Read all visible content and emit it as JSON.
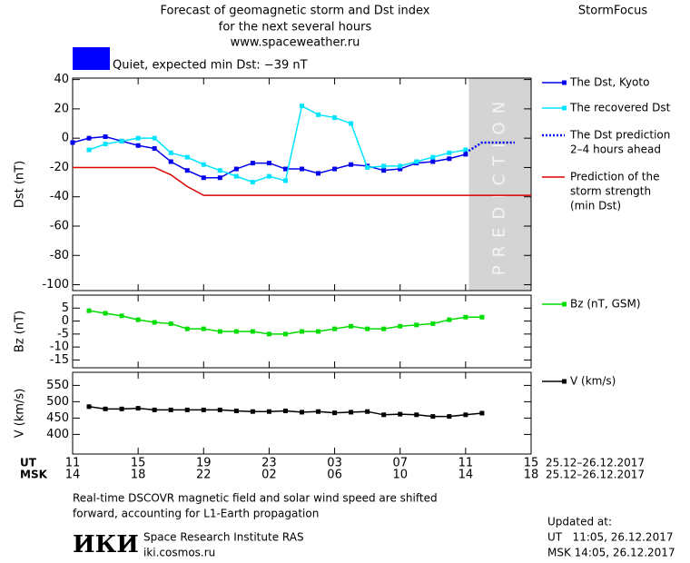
{
  "header": {
    "title_lines": [
      "Forecast of geomagnetic storm and Dst index",
      "for the next several hours",
      "www.spaceweather.ru"
    ],
    "brand": "StormFocus"
  },
  "status": {
    "text": "Quiet, expected min Dst: −39 nT",
    "color": "#0000ff"
  },
  "chart_data": [
    {
      "type": "line",
      "ylabel": "Dst (nT)",
      "xlim": [
        0,
        28
      ],
      "ylim": [
        -104,
        41
      ],
      "yticks": [
        40,
        20,
        0,
        -20,
        -40,
        -60,
        -80,
        -100
      ],
      "shade": {
        "x": [
          24.2,
          28
        ],
        "label": "PREDICTION",
        "color": "#d4d4d4"
      },
      "series": [
        {
          "name": [
            "The Dst, Kyoto"
          ],
          "color": "#0000ee",
          "marker": "square",
          "x": [
            0,
            1,
            2,
            3,
            4,
            5,
            6,
            7,
            8,
            9,
            10,
            11,
            12,
            13,
            14,
            15,
            16,
            17,
            18,
            19,
            20,
            21,
            22,
            23,
            24
          ],
          "values": [
            -3,
            0,
            1,
            -2,
            -5,
            -7,
            -16,
            -22,
            -27,
            -27,
            -21,
            -17,
            -17,
            -21,
            -21,
            -24,
            -21,
            -18,
            -19,
            -22,
            -21,
            -17,
            -16,
            -14,
            -11
          ]
        },
        {
          "name": [
            "The recovered Dst"
          ],
          "color": "#00e5ff",
          "marker": "square",
          "x": [
            0,
            1,
            2,
            3,
            4,
            5,
            6,
            7,
            8,
            9,
            10,
            11,
            12,
            13,
            14,
            15,
            16,
            17,
            18,
            19,
            20,
            21,
            22,
            23,
            24
          ],
          "values": [
            null,
            -8,
            -4,
            -2,
            0,
            0,
            -10,
            -13,
            -18,
            -22,
            -26,
            -30,
            -26,
            -29,
            22,
            16,
            14,
            10,
            -20,
            -19,
            -19,
            -16,
            -13,
            -10,
            -8
          ]
        },
        {
          "name": [
            "The Dst prediction",
            "2–4 hours ahead"
          ],
          "color": "#0000ee",
          "dash": "dotted",
          "x": [
            24,
            25,
            27
          ],
          "values": [
            -10,
            -3,
            -3
          ]
        },
        {
          "name": [
            "Prediction of the",
            "storm strength",
            "(min Dst)"
          ],
          "color": "#dd0000",
          "x": [
            0,
            5,
            6,
            7,
            8,
            28
          ],
          "values": [
            -20,
            -20,
            -25,
            -33,
            -39,
            -39
          ]
        }
      ]
    },
    {
      "type": "line",
      "ylabel": "Bz (nT)",
      "xlim": [
        0,
        28
      ],
      "ylim": [
        -18,
        10
      ],
      "yticks": [
        5,
        0,
        -5,
        -10,
        -15
      ],
      "series": [
        {
          "name": [
            "Bz (nT, GSM)"
          ],
          "color": "#00dd00",
          "marker": "square",
          "x": [
            1,
            2,
            3,
            4,
            5,
            6,
            7,
            8,
            9,
            10,
            11,
            12,
            13,
            14,
            15,
            16,
            17,
            18,
            19,
            20,
            21,
            22,
            23,
            24,
            25
          ],
          "values": [
            4,
            3,
            2,
            0.5,
            -0.5,
            -1,
            -3,
            -3,
            -4,
            -4,
            -4,
            -5,
            -5,
            -4,
            -4,
            -3,
            -2,
            -3,
            -3,
            -2,
            -1.5,
            -1,
            0.5,
            1.5,
            1.5
          ]
        }
      ]
    },
    {
      "type": "line",
      "ylabel": "V (km/s)",
      "xlim": [
        0,
        28
      ],
      "ylim": [
        340,
        590
      ],
      "yticks": [
        550,
        500,
        450,
        400
      ],
      "series": [
        {
          "name": [
            "V (km/s)"
          ],
          "color": "#000000",
          "marker": "square",
          "x": [
            1,
            2,
            3,
            4,
            5,
            6,
            7,
            8,
            9,
            10,
            11,
            12,
            13,
            14,
            15,
            16,
            17,
            18,
            19,
            20,
            21,
            22,
            23,
            24,
            25
          ],
          "values": [
            485,
            478,
            478,
            480,
            475,
            475,
            475,
            475,
            475,
            472,
            470,
            470,
            472,
            468,
            470,
            466,
            468,
            470,
            460,
            462,
            460,
            455,
            455,
            460,
            465
          ]
        }
      ],
      "x_rows": [
        {
          "name": "UT",
          "range": "25.12–26.12.2017",
          "ticks": [
            {
              "value": 0,
              "label": "11"
            },
            {
              "value": 4,
              "label": "15"
            },
            {
              "value": 8,
              "label": "19"
            },
            {
              "value": 12,
              "label": "23"
            },
            {
              "value": 16,
              "label": "03"
            },
            {
              "value": 20,
              "label": "07"
            },
            {
              "value": 24,
              "label": "11"
            },
            {
              "value": 28,
              "label": "15"
            }
          ]
        },
        {
          "name": "MSK",
          "range": "25.12–26.12.2017",
          "ticks": [
            {
              "value": 0,
              "label": "14"
            },
            {
              "value": 4,
              "label": "18"
            },
            {
              "value": 8,
              "label": "22"
            },
            {
              "value": 12,
              "label": "02"
            },
            {
              "value": 16,
              "label": "06"
            },
            {
              "value": 20,
              "label": "10"
            },
            {
              "value": 24,
              "label": "14"
            },
            {
              "value": 28,
              "label": "18"
            }
          ]
        }
      ]
    }
  ],
  "footer": {
    "note_lines": [
      "Real-time DSCOVR magnetic field and solar wind speed are shifted",
      "forward, accounting for L1-Earth propagation"
    ],
    "logo": "ИКИ",
    "institute": "Space Research Institute RAS",
    "site": "iki.cosmos.ru",
    "updated_lines": [
      "Updated at:",
      "UT   11:05, 26.12.2017",
      "MSK 14:05, 26.12.2017"
    ]
  }
}
